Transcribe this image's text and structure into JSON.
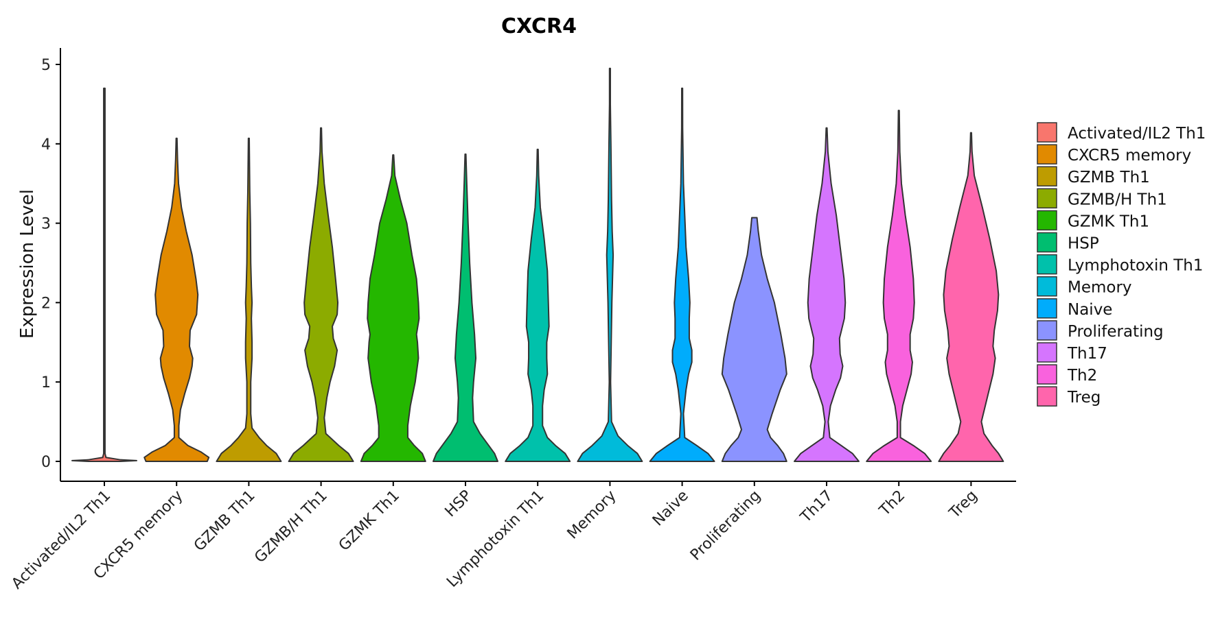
{
  "chart_data": {
    "type": "violin",
    "title": "CXCR4",
    "xlabel": "",
    "ylabel": "Expression Level",
    "ylim": [
      -0.25,
      5.2
    ],
    "yticks": [
      0,
      1,
      2,
      3,
      4,
      5
    ],
    "grid": false,
    "legend_position": "right",
    "categories": [
      "Activated/IL2 Th1",
      "CXCR5 memory",
      "GZMB Th1",
      "GZMB/H Th1",
      "GZMK Th1",
      "HSP",
      "Lymphotoxin Th1",
      "Memory",
      "Naive",
      "Proliferating",
      "Th17",
      "Th2",
      "Treg"
    ],
    "colors": [
      "#F8766D",
      "#E18A00",
      "#BE9C00",
      "#8CAB00",
      "#24B700",
      "#00BE70",
      "#00C1AB",
      "#00BBDA",
      "#00ACFC",
      "#8B93FF",
      "#D575FE",
      "#F962DD",
      "#FF65AC"
    ],
    "series": [
      {
        "name": "Activated/IL2 Th1",
        "max": 4.7,
        "density": [
          [
            0,
            0.5
          ],
          [
            0.01,
            1
          ],
          [
            0.02,
            0.5
          ],
          [
            0.05,
            0.05
          ],
          [
            0.1,
            0.02
          ],
          [
            4.7,
            0.02
          ]
        ]
      },
      {
        "name": "CXCR5 memory",
        "max": 4.07,
        "density": [
          [
            0,
            0.95
          ],
          [
            0.05,
            1
          ],
          [
            0.12,
            0.75
          ],
          [
            0.2,
            0.35
          ],
          [
            0.3,
            0.07
          ],
          [
            0.45,
            0.07
          ],
          [
            0.65,
            0.12
          ],
          [
            0.85,
            0.25
          ],
          [
            1.05,
            0.4
          ],
          [
            1.2,
            0.48
          ],
          [
            1.3,
            0.5
          ],
          [
            1.45,
            0.4
          ],
          [
            1.65,
            0.42
          ],
          [
            1.85,
            0.62
          ],
          [
            2.1,
            0.66
          ],
          [
            2.3,
            0.6
          ],
          [
            2.6,
            0.48
          ],
          [
            2.9,
            0.3
          ],
          [
            3.2,
            0.15
          ],
          [
            3.5,
            0.06
          ],
          [
            3.8,
            0.03
          ],
          [
            4.07,
            0.01
          ]
        ]
      },
      {
        "name": "GZMB Th1",
        "max": 4.07,
        "density": [
          [
            0,
            1
          ],
          [
            0.1,
            0.85
          ],
          [
            0.2,
            0.55
          ],
          [
            0.3,
            0.32
          ],
          [
            0.42,
            0.1
          ],
          [
            0.6,
            0.06
          ],
          [
            1,
            0.06
          ],
          [
            1.3,
            0.1
          ],
          [
            1.5,
            0.1
          ],
          [
            1.8,
            0.08
          ],
          [
            2,
            0.1
          ],
          [
            2.2,
            0.08
          ],
          [
            2.5,
            0.06
          ],
          [
            3,
            0.05
          ],
          [
            3.4,
            0.03
          ],
          [
            4.07,
            0.01
          ]
        ]
      },
      {
        "name": "GZMB/H Th1",
        "max": 4.2,
        "density": [
          [
            0,
            1
          ],
          [
            0.1,
            0.85
          ],
          [
            0.2,
            0.55
          ],
          [
            0.35,
            0.15
          ],
          [
            0.55,
            0.1
          ],
          [
            0.8,
            0.18
          ],
          [
            1,
            0.28
          ],
          [
            1.2,
            0.42
          ],
          [
            1.4,
            0.5
          ],
          [
            1.55,
            0.38
          ],
          [
            1.7,
            0.35
          ],
          [
            1.85,
            0.5
          ],
          [
            2,
            0.52
          ],
          [
            2.3,
            0.45
          ],
          [
            2.7,
            0.35
          ],
          [
            3.1,
            0.22
          ],
          [
            3.5,
            0.1
          ],
          [
            3.9,
            0.03
          ],
          [
            4.2,
            0.01
          ]
        ]
      },
      {
        "name": "GZMK Th1",
        "max": 3.86,
        "density": [
          [
            0,
            1
          ],
          [
            0.1,
            0.9
          ],
          [
            0.2,
            0.65
          ],
          [
            0.3,
            0.45
          ],
          [
            0.45,
            0.45
          ],
          [
            0.7,
            0.53
          ],
          [
            1,
            0.68
          ],
          [
            1.3,
            0.78
          ],
          [
            1.5,
            0.75
          ],
          [
            1.6,
            0.72
          ],
          [
            1.8,
            0.8
          ],
          [
            2,
            0.78
          ],
          [
            2.3,
            0.72
          ],
          [
            2.6,
            0.58
          ],
          [
            3,
            0.42
          ],
          [
            3.3,
            0.22
          ],
          [
            3.6,
            0.05
          ],
          [
            3.86,
            0.01
          ]
        ]
      },
      {
        "name": "HSP",
        "max": 3.87,
        "density": [
          [
            0,
            1
          ],
          [
            0.1,
            0.9
          ],
          [
            0.2,
            0.72
          ],
          [
            0.35,
            0.45
          ],
          [
            0.5,
            0.25
          ],
          [
            0.8,
            0.22
          ],
          [
            1,
            0.25
          ],
          [
            1.3,
            0.32
          ],
          [
            1.6,
            0.28
          ],
          [
            2,
            0.2
          ],
          [
            2.5,
            0.13
          ],
          [
            3,
            0.08
          ],
          [
            3.5,
            0.04
          ],
          [
            3.87,
            0.01
          ]
        ]
      },
      {
        "name": "Lymphotoxin Th1",
        "max": 3.93,
        "density": [
          [
            0,
            1
          ],
          [
            0.1,
            0.85
          ],
          [
            0.2,
            0.55
          ],
          [
            0.3,
            0.3
          ],
          [
            0.45,
            0.15
          ],
          [
            0.7,
            0.15
          ],
          [
            0.9,
            0.2
          ],
          [
            1.1,
            0.3
          ],
          [
            1.3,
            0.28
          ],
          [
            1.5,
            0.28
          ],
          [
            1.7,
            0.35
          ],
          [
            2,
            0.33
          ],
          [
            2.4,
            0.3
          ],
          [
            2.8,
            0.2
          ],
          [
            3.2,
            0.08
          ],
          [
            3.6,
            0.03
          ],
          [
            3.93,
            0.01
          ]
        ]
      },
      {
        "name": "Memory",
        "max": 4.95,
        "density": [
          [
            0,
            1
          ],
          [
            0.1,
            0.85
          ],
          [
            0.2,
            0.55
          ],
          [
            0.32,
            0.25
          ],
          [
            0.5,
            0.05
          ],
          [
            1,
            0.02
          ],
          [
            1.5,
            0.04
          ],
          [
            2,
            0.06
          ],
          [
            2.3,
            0.08
          ],
          [
            2.6,
            0.1
          ],
          [
            2.9,
            0.07
          ],
          [
            3.3,
            0.05
          ],
          [
            4,
            0.03
          ],
          [
            4.5,
            0.01
          ],
          [
            4.95,
            0.005
          ]
        ]
      },
      {
        "name": "Naive",
        "max": 4.7,
        "density": [
          [
            0,
            1
          ],
          [
            0.1,
            0.8
          ],
          [
            0.2,
            0.45
          ],
          [
            0.3,
            0.08
          ],
          [
            0.6,
            0.04
          ],
          [
            0.9,
            0.12
          ],
          [
            1.1,
            0.2
          ],
          [
            1.25,
            0.3
          ],
          [
            1.4,
            0.3
          ],
          [
            1.55,
            0.22
          ],
          [
            1.8,
            0.22
          ],
          [
            2,
            0.24
          ],
          [
            2.3,
            0.2
          ],
          [
            2.7,
            0.12
          ],
          [
            3.1,
            0.08
          ],
          [
            3.5,
            0.04
          ],
          [
            4.2,
            0.015
          ],
          [
            4.7,
            0.005
          ]
        ]
      },
      {
        "name": "Proliferating",
        "max": 3.07,
        "density": [
          [
            0,
            1
          ],
          [
            0.1,
            0.9
          ],
          [
            0.2,
            0.72
          ],
          [
            0.3,
            0.5
          ],
          [
            0.4,
            0.4
          ],
          [
            0.6,
            0.55
          ],
          [
            0.9,
            0.8
          ],
          [
            1.1,
            1
          ],
          [
            1.3,
            0.95
          ],
          [
            1.6,
            0.82
          ],
          [
            2,
            0.62
          ],
          [
            2.3,
            0.4
          ],
          [
            2.6,
            0.22
          ],
          [
            2.9,
            0.12
          ],
          [
            3.07,
            0.08
          ]
        ]
      },
      {
        "name": "Th17",
        "max": 4.2,
        "density": [
          [
            0,
            1
          ],
          [
            0.1,
            0.8
          ],
          [
            0.2,
            0.45
          ],
          [
            0.3,
            0.1
          ],
          [
            0.5,
            0.05
          ],
          [
            0.7,
            0.12
          ],
          [
            0.9,
            0.28
          ],
          [
            1.05,
            0.43
          ],
          [
            1.2,
            0.5
          ],
          [
            1.35,
            0.42
          ],
          [
            1.55,
            0.4
          ],
          [
            1.8,
            0.55
          ],
          [
            2,
            0.58
          ],
          [
            2.3,
            0.54
          ],
          [
            2.7,
            0.42
          ],
          [
            3.1,
            0.3
          ],
          [
            3.5,
            0.14
          ],
          [
            3.9,
            0.04
          ],
          [
            4.2,
            0.01
          ]
        ]
      },
      {
        "name": "Th2",
        "max": 4.42,
        "density": [
          [
            0,
            1
          ],
          [
            0.1,
            0.8
          ],
          [
            0.2,
            0.45
          ],
          [
            0.3,
            0.05
          ],
          [
            0.5,
            0.05
          ],
          [
            0.7,
            0.12
          ],
          [
            0.9,
            0.25
          ],
          [
            1.1,
            0.38
          ],
          [
            1.25,
            0.42
          ],
          [
            1.4,
            0.35
          ],
          [
            1.6,
            0.35
          ],
          [
            1.8,
            0.45
          ],
          [
            2,
            0.48
          ],
          [
            2.3,
            0.45
          ],
          [
            2.7,
            0.35
          ],
          [
            3.1,
            0.2
          ],
          [
            3.5,
            0.08
          ],
          [
            3.9,
            0.03
          ],
          [
            4.42,
            0.005
          ]
        ]
      },
      {
        "name": "Treg",
        "max": 4.14,
        "density": [
          [
            0,
            1
          ],
          [
            0.1,
            0.85
          ],
          [
            0.2,
            0.65
          ],
          [
            0.35,
            0.4
          ],
          [
            0.5,
            0.32
          ],
          [
            0.8,
            0.5
          ],
          [
            1.1,
            0.68
          ],
          [
            1.3,
            0.75
          ],
          [
            1.45,
            0.68
          ],
          [
            1.65,
            0.72
          ],
          [
            1.9,
            0.82
          ],
          [
            2.1,
            0.85
          ],
          [
            2.4,
            0.78
          ],
          [
            2.8,
            0.58
          ],
          [
            3.2,
            0.35
          ],
          [
            3.6,
            0.1
          ],
          [
            3.9,
            0.03
          ],
          [
            4.14,
            0.01
          ]
        ]
      }
    ]
  }
}
